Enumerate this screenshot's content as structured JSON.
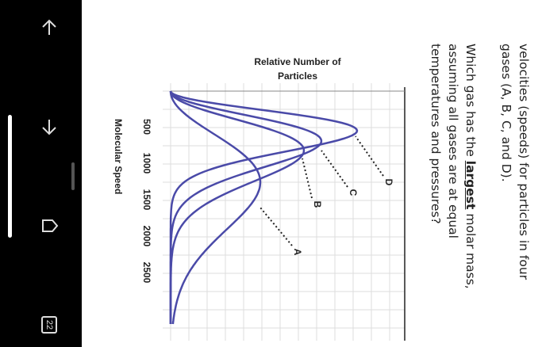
{
  "question": {
    "intro": [
      "velocities (speeds) for particles in four",
      "gases (A, B, C, and D)."
    ],
    "prompt_start": "Which gas has the ",
    "prompt_emphasis": "largest",
    "prompt_end": " molar mass,",
    "prompt_rest": [
      "assuming all gases are at equal",
      "temperatures and pressures?"
    ]
  },
  "chart": {
    "y_label": [
      "Relative Number of",
      "Particles"
    ],
    "x_label": "Molecular Speed",
    "x_ticks": [
      "500",
      "1000",
      "1500",
      "2000",
      "2500"
    ],
    "curve_labels": [
      "A",
      "B",
      "C",
      "D"
    ]
  },
  "sidebar": {
    "tab_count": "22"
  }
}
